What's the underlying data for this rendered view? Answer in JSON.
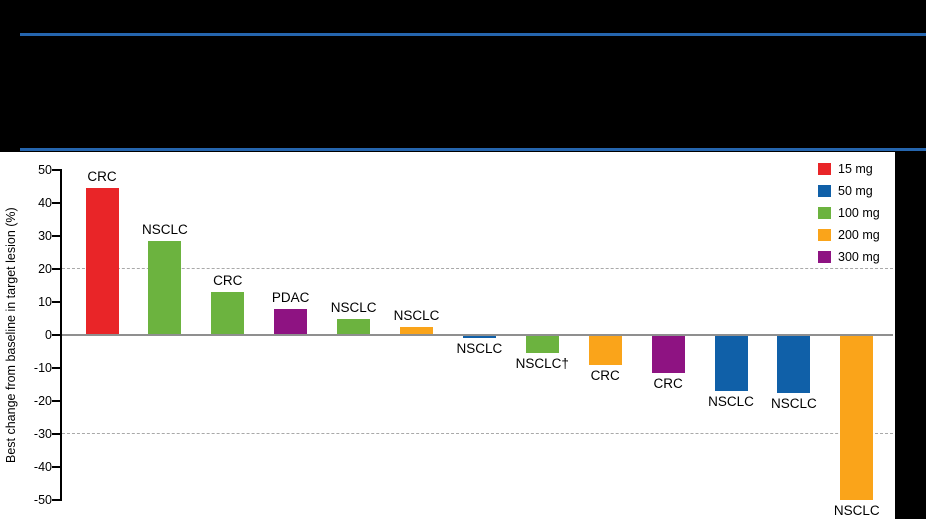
{
  "colors": {
    "divider_blue": "#2565AE",
    "background": "#000000",
    "panel_background": "#FFFFFF",
    "axis": "#000000",
    "zero_line": "#8F8F8F",
    "dashed_line": "#A9A9A9"
  },
  "chart_data": {
    "type": "bar",
    "subtype": "waterfall",
    "title": "",
    "xlabel": "",
    "ylabel": "Best change from baseline in target lesion (%)",
    "ylim": [
      -50,
      50
    ],
    "yticks": [
      50,
      40,
      30,
      20,
      10,
      0,
      -10,
      -20,
      -30,
      -40,
      -50
    ],
    "reference_lines": [
      20,
      -30
    ],
    "grid": false,
    "legend_position": "top-right",
    "legend": [
      {
        "label": "15 mg",
        "color": "#E92528"
      },
      {
        "label": "50 mg",
        "color": "#1060A8"
      },
      {
        "label": "100 mg",
        "color": "#6CB33F"
      },
      {
        "label": "200 mg",
        "color": "#FAA41A"
      },
      {
        "label": "300 mg",
        "color": "#8E1382"
      }
    ],
    "bars": [
      {
        "label": "CRC",
        "dose": "15 mg",
        "value": 44.5
      },
      {
        "label": "NSCLC",
        "dose": "100 mg",
        "value": 28.5
      },
      {
        "label": "CRC",
        "dose": "100 mg",
        "value": 13
      },
      {
        "label": "PDAC",
        "dose": "300 mg",
        "value": 8
      },
      {
        "label": "NSCLC",
        "dose": "100 mg",
        "value": 5
      },
      {
        "label": "NSCLC",
        "dose": "200 mg",
        "value": 2.5
      },
      {
        "label": "NSCLC",
        "dose": "50 mg",
        "value": -1
      },
      {
        "label": "NSCLC†",
        "dose": "100 mg",
        "value": -5.5
      },
      {
        "label": "CRC",
        "dose": "200 mg",
        "value": -9
      },
      {
        "label": "CRC",
        "dose": "300 mg",
        "value": -11.5
      },
      {
        "label": "NSCLC",
        "dose": "50 mg",
        "value": -17
      },
      {
        "label": "NSCLC",
        "dose": "50 mg",
        "value": -17.5
      },
      {
        "label": "NSCLC",
        "dose": "200 mg",
        "value": -50
      }
    ]
  }
}
